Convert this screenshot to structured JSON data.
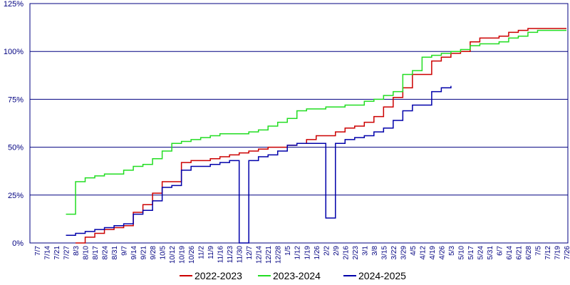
{
  "chart_data": {
    "type": "line",
    "categories": [
      "7/7",
      "7/14",
      "7/21",
      "7/27",
      "8/3",
      "8/10",
      "8/17",
      "8/24",
      "8/31",
      "9/7",
      "9/14",
      "9/21",
      "9/28",
      "10/5",
      "10/12",
      "10/19",
      "10/26",
      "11/2",
      "11/9",
      "11/16",
      "11/23",
      "11/30",
      "12/7",
      "12/14",
      "12/21",
      "12/28",
      "1/5",
      "1/12",
      "1/19",
      "1/26",
      "2/2",
      "2/9",
      "2/16",
      "2/23",
      "3/1",
      "3/8",
      "3/15",
      "3/22",
      "3/29",
      "4/5",
      "4/12",
      "4/19",
      "4/26",
      "5/3",
      "5/10",
      "5/17",
      "5/24",
      "5/31",
      "6/7",
      "6/14",
      "6/21",
      "6/28",
      "7/5",
      "7/12",
      "7/19",
      "7/26"
    ],
    "series": [
      {
        "name": "2022-2023",
        "color": "#cc0000",
        "values": [
          null,
          null,
          null,
          null,
          0,
          3,
          5,
          7,
          8,
          9,
          16,
          20,
          26,
          32,
          32,
          42,
          43,
          43,
          44,
          45,
          46,
          47,
          48,
          49,
          50,
          50,
          51,
          52,
          54,
          56,
          56,
          58,
          60,
          61,
          63,
          66,
          71,
          76,
          81,
          88,
          88,
          95,
          97,
          99,
          100,
          105,
          107,
          107,
          108,
          110,
          111,
          112,
          112,
          112,
          112,
          112
        ]
      },
      {
        "name": "2023-2024",
        "color": "#22dd22",
        "values": [
          null,
          null,
          null,
          15,
          32,
          34,
          35,
          36,
          36,
          38,
          40,
          41,
          44,
          48,
          52,
          53,
          54,
          55,
          56,
          57,
          57,
          57,
          58,
          59,
          61,
          63,
          65,
          69,
          70,
          70,
          71,
          71,
          72,
          72,
          74,
          75,
          77,
          79,
          88,
          90,
          97,
          98,
          99,
          100,
          101,
          103,
          104,
          104,
          105,
          107,
          108,
          110,
          111,
          111,
          111,
          111
        ]
      },
      {
        "name": "2024-2025",
        "color": "#0000aa",
        "values": [
          null,
          null,
          null,
          4,
          5,
          6,
          7,
          8,
          9,
          10,
          15,
          17,
          22,
          29,
          30,
          38,
          40,
          40,
          41,
          42,
          43,
          0,
          43,
          45,
          46,
          48,
          51,
          52,
          52,
          52,
          13,
          52,
          54,
          55,
          56,
          58,
          60,
          64,
          69,
          72,
          72,
          79,
          81,
          82,
          null,
          null,
          null,
          null,
          null,
          null,
          null,
          null,
          null,
          null,
          null,
          null
        ]
      }
    ],
    "ylim": [
      0,
      125
    ],
    "yticks": [
      {
        "value": 0,
        "label": "0%"
      },
      {
        "value": 25,
        "label": "25%"
      },
      {
        "value": 50,
        "label": "50%"
      },
      {
        "value": 75,
        "label": "75%"
      },
      {
        "value": 100,
        "label": "100%"
      },
      {
        "value": 125,
        "label": "125%"
      }
    ],
    "grid": true
  }
}
